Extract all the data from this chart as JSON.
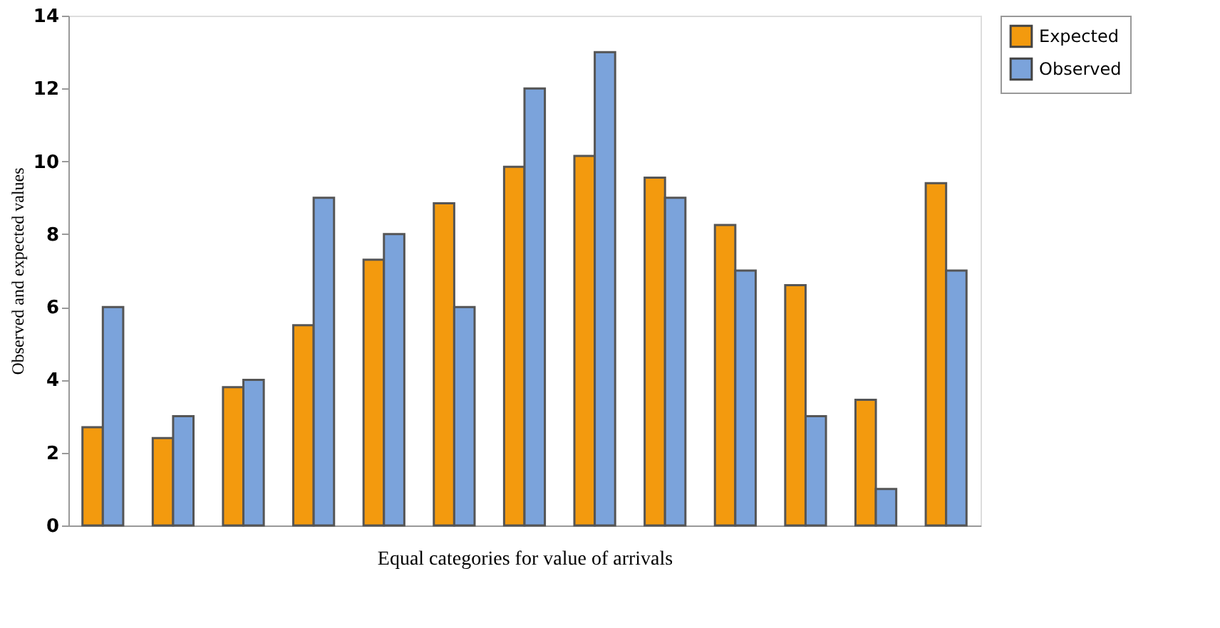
{
  "chart_data": {
    "type": "bar",
    "xlabel": "Equal categories for value of arrivals",
    "ylabel": "Observed and expected values",
    "categories": [
      null,
      null,
      null,
      null,
      null,
      null,
      null,
      null,
      null,
      null,
      null,
      null,
      null
    ],
    "series": [
      {
        "name": "Expected",
        "color": "#f39a0e",
        "values": [
          2.7,
          2.4,
          3.8,
          5.5,
          7.3,
          8.85,
          9.85,
          10.15,
          9.55,
          8.25,
          6.6,
          3.45,
          9.4
        ]
      },
      {
        "name": "Observed",
        "color": "#7ba3db",
        "values": [
          6,
          3,
          4,
          9,
          8,
          6,
          12,
          13,
          9,
          7,
          3,
          1,
          7
        ]
      }
    ],
    "ylim": [
      0,
      14
    ],
    "yticks": [
      0,
      2,
      4,
      6,
      8,
      10,
      12,
      14
    ],
    "grid": false,
    "legend": "top right",
    "tick_labels": "y"
  }
}
